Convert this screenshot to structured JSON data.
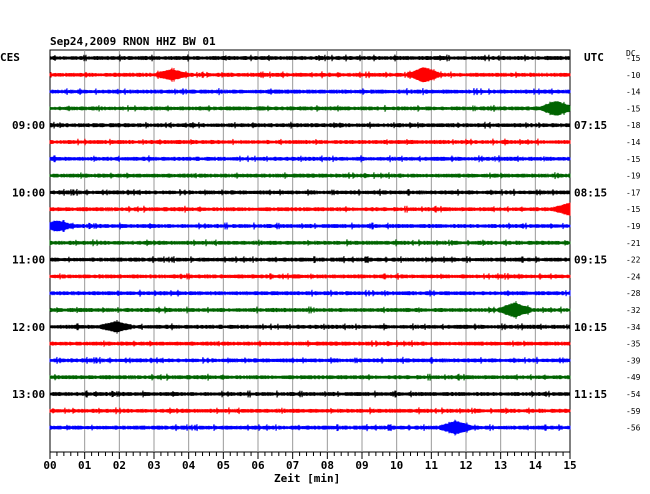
{
  "chart_data": {
    "type": "line",
    "title": "Sep24,2009   RNON HHZ BW 01",
    "xlabel": "Zeit [min]",
    "x_ticks": [
      "00",
      "01",
      "02",
      "03",
      "04",
      "05",
      "06",
      "07",
      "08",
      "09",
      "10",
      "11",
      "12",
      "13",
      "14",
      "15"
    ],
    "xlim": [
      0,
      15
    ],
    "left_timezone": "CES",
    "right_timezone": "UTC",
    "dc_header": "DC",
    "left_hour_labels": [
      "09:00",
      "10:00",
      "11:00",
      "12:00",
      "13:00"
    ],
    "right_hour_labels": [
      "07:15",
      "08:15",
      "09:15",
      "10:15",
      "11:15"
    ],
    "hour_label_rows": [
      4,
      8,
      12,
      16,
      20
    ],
    "trace_colors": [
      "#000000",
      "#ff0000",
      "#0000ff",
      "#006400"
    ],
    "dc_offsets": [
      -15,
      -10,
      -14,
      -15,
      -18,
      -14,
      -15,
      -19,
      -17,
      -15,
      -19,
      -21,
      -22,
      -24,
      -28,
      -32,
      -34,
      -35,
      -39,
      -49,
      -54,
      -59,
      -56
    ],
    "events": [
      {
        "row": 1,
        "minute": 3.5,
        "amp": 4
      },
      {
        "row": 1,
        "minute": 10.8,
        "amp": 6
      },
      {
        "row": 3,
        "minute": 14.6,
        "amp": 6
      },
      {
        "row": 9,
        "minute": 15.0,
        "amp": 5
      },
      {
        "row": 10,
        "minute": 0.2,
        "amp": 4
      },
      {
        "row": 15,
        "minute": 13.4,
        "amp": 6
      },
      {
        "row": 16,
        "minute": 1.9,
        "amp": 4
      },
      {
        "row": 22,
        "minute": 11.7,
        "amp": 5
      }
    ]
  }
}
